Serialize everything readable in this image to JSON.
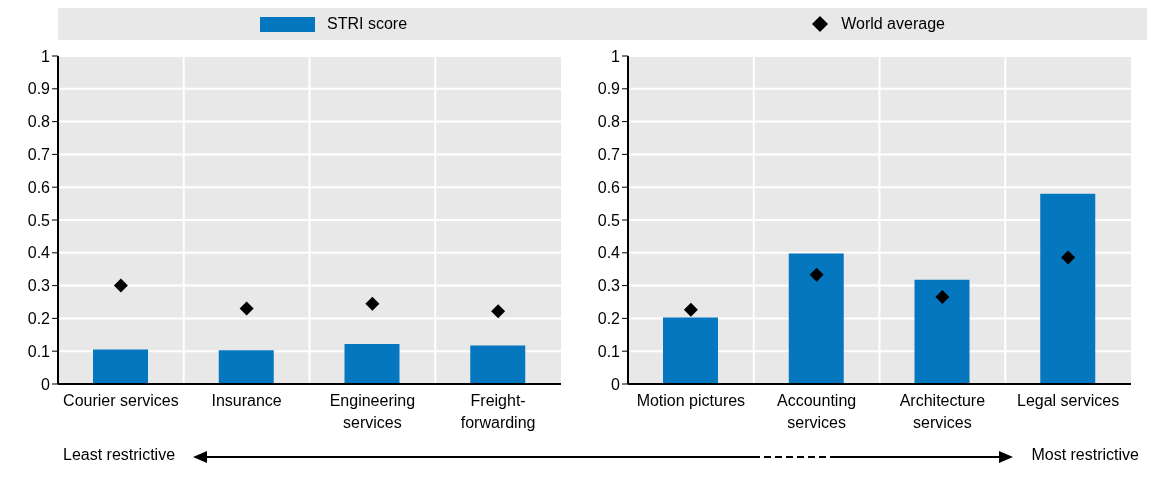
{
  "chart_data": [
    {
      "type": "bar",
      "categories": [
        "Courier services",
        "Insurance",
        "Engineering services",
        "Freight-forwarding"
      ],
      "series": [
        {
          "name": "STRI score",
          "color": "#0477bf",
          "values": [
            0.105,
            0.103,
            0.122,
            0.117
          ]
        },
        {
          "name": "World average",
          "type": "scatter",
          "color": "#000000",
          "marker": "diamond",
          "values": [
            0.3,
            0.23,
            0.245,
            0.222
          ]
        }
      ],
      "ylim": [
        0,
        1
      ],
      "yticks": [
        0,
        0.1,
        0.2,
        0.3,
        0.4,
        0.5,
        0.6,
        0.7,
        0.8,
        0.9,
        1
      ],
      "grid": true,
      "legend": "top",
      "annotations": [
        "Least restrictive"
      ]
    },
    {
      "type": "bar",
      "categories": [
        "Motion pictures",
        "Accounting services",
        "Architecture services",
        "Legal services"
      ],
      "series": [
        {
          "name": "STRI score",
          "color": "#0477bf",
          "values": [
            0.203,
            0.398,
            0.318,
            0.58
          ]
        },
        {
          "name": "World average",
          "type": "scatter",
          "color": "#000000",
          "marker": "diamond",
          "values": [
            0.226,
            0.333,
            0.265,
            0.386
          ]
        }
      ],
      "ylim": [
        0,
        1
      ],
      "yticks": [
        0,
        0.1,
        0.2,
        0.3,
        0.4,
        0.5,
        0.6,
        0.7,
        0.8,
        0.9,
        1
      ],
      "grid": true,
      "annotations": [
        "Most restrictive"
      ]
    }
  ]
}
